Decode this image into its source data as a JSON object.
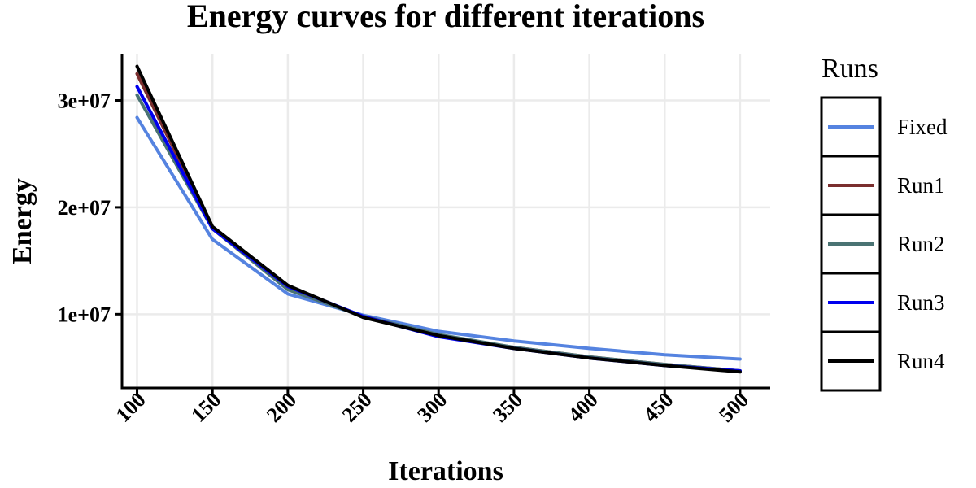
{
  "chart_data": {
    "type": "line",
    "title": "Energy curves for different iterations",
    "xlabel": "Iterations",
    "ylabel": "Energy",
    "x": [
      100,
      150,
      200,
      250,
      300,
      350,
      400,
      450,
      500
    ],
    "xlim": [
      90,
      520
    ],
    "ylim": [
      3100000,
      34300000
    ],
    "x_ticks": [
      100,
      150,
      200,
      250,
      300,
      350,
      400,
      450,
      500
    ],
    "x_tick_labels": [
      "100",
      "150",
      "200",
      "250",
      "300",
      "350",
      "400",
      "450",
      "500"
    ],
    "y_ticks": [
      10000000,
      20000000,
      30000000
    ],
    "y_tick_labels": [
      "1e+07",
      "2e+07",
      "3e+07"
    ],
    "grid": true,
    "legend": {
      "title": "Runs",
      "placement": "right"
    },
    "series": [
      {
        "name": "Fixed",
        "color": "#5583e0",
        "values": [
          28400000,
          17000000,
          11900000,
          9900000,
          8400000,
          7500000,
          6800000,
          6200000,
          5800000
        ]
      },
      {
        "name": "Run1",
        "color": "#7a2e2e",
        "values": [
          32500000,
          18100000,
          12500000,
          9800000,
          8000000,
          6900000,
          6000000,
          5300000,
          4700000
        ]
      },
      {
        "name": "Run2",
        "color": "#4a7373",
        "values": [
          30500000,
          18000000,
          12300000,
          9800000,
          8100000,
          6900000,
          6000000,
          5300000,
          4700000
        ]
      },
      {
        "name": "Run3",
        "color": "#0000ee",
        "values": [
          31300000,
          18000000,
          12600000,
          9800000,
          7900000,
          6800000,
          5900000,
          5200000,
          4700000
        ]
      },
      {
        "name": "Run4",
        "color": "#000000",
        "values": [
          33200000,
          18200000,
          12700000,
          9700000,
          8000000,
          6800000,
          5900000,
          5200000,
          4600000
        ]
      }
    ]
  }
}
